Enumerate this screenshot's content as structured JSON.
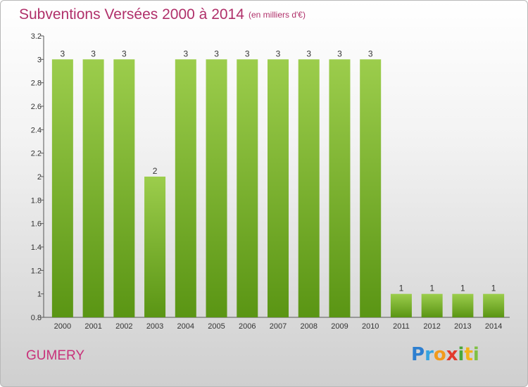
{
  "header": {
    "title": "Subventions Versées 2000 à 2014",
    "subtitle": "(en milliers d'€)"
  },
  "footer": {
    "commune": "GUMERY",
    "logo_text": "Proxiti"
  },
  "colors": {
    "bar_top": "#9ccd4c",
    "bar_bottom": "#5a9514",
    "title": "#b0306a"
  },
  "chart_data": {
    "type": "bar",
    "title": "Subventions Versées 2000 à 2014",
    "subtitle": "(en milliers d'€)",
    "xlabel": "",
    "ylabel": "",
    "categories": [
      "2000",
      "2001",
      "2002",
      "2003",
      "2004",
      "2005",
      "2006",
      "2007",
      "2008",
      "2009",
      "2010",
      "2011",
      "2012",
      "2013",
      "2014"
    ],
    "values": [
      3,
      3,
      3,
      2,
      3,
      3,
      3,
      3,
      3,
      3,
      3,
      1,
      1,
      1,
      1
    ],
    "data_labels": [
      "3",
      "3",
      "3",
      "2",
      "3",
      "3",
      "3",
      "3",
      "3",
      "3",
      "3",
      "1",
      "1",
      "1",
      "1"
    ],
    "ylim": [
      0.8,
      3.2
    ],
    "yticks": [
      "0.8",
      "1",
      "1.2",
      "1.4",
      "1.6",
      "1.8",
      "2",
      "2.2",
      "2.4",
      "2.6",
      "2.8",
      "3",
      "3.2"
    ],
    "grid": false,
    "legend": "none"
  }
}
